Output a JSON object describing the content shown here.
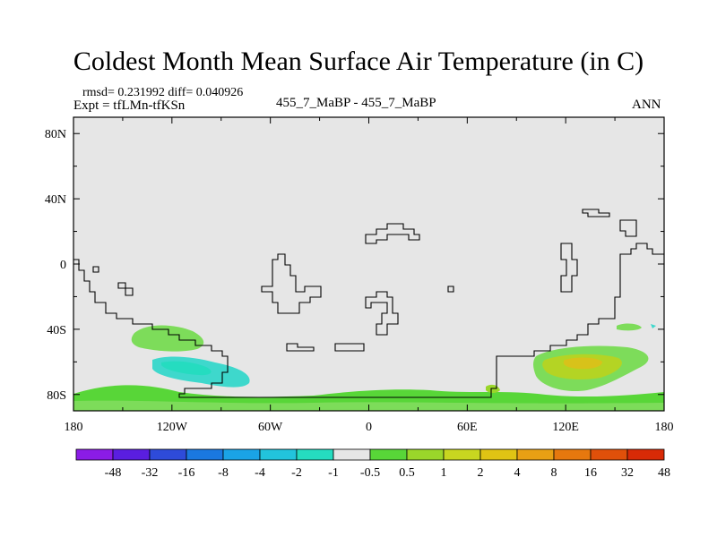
{
  "title": "Coldest Month Mean Surface Air Temperature (in C)",
  "stats_line": "rmsd= 0.231992 diff= 0.040926",
  "expt_line": "Expt = tfLMn-tfKSn",
  "center_label": "455_7_MaBP - 455_7_MaBP",
  "season_label": "ANN",
  "lat_ticks": [
    {
      "label": "80N",
      "value": 80
    },
    {
      "label": "40N",
      "value": 40
    },
    {
      "label": "0",
      "value": 0
    },
    {
      "label": "40S",
      "value": -40
    },
    {
      "label": "80S",
      "value": -80
    }
  ],
  "lon_ticks": [
    {
      "label": "180",
      "value": -180
    },
    {
      "label": "120W",
      "value": -120
    },
    {
      "label": "60W",
      "value": -60
    },
    {
      "label": "0",
      "value": 0
    },
    {
      "label": "60E",
      "value": 60
    },
    {
      "label": "120E",
      "value": 120
    },
    {
      "label": "180",
      "value": 180
    }
  ],
  "colorbar": {
    "colors": [
      "#8b1ce6",
      "#5a1ee0",
      "#2e4bd9",
      "#1a78e0",
      "#1aa3e6",
      "#22c4dc",
      "#25dcc0",
      "#e6e6e6",
      "#58d638",
      "#9ad62a",
      "#c8d620",
      "#e0c414",
      "#e8a014",
      "#e6780e",
      "#e0500a",
      "#d82a06"
    ],
    "labels": [
      "-48",
      "-32",
      "-16",
      "-8",
      "-4",
      "-2",
      "-1",
      "-0.5",
      "0.5",
      "1",
      "2",
      "4",
      "8",
      "16",
      "32",
      "48"
    ]
  },
  "colors": {
    "background_field": "#e6e6e6",
    "light_green": "#7ddc5a",
    "green": "#58d638",
    "cyan": "#3ed8cc",
    "yellow_green": "#b4d424",
    "yellow": "#d8c21a"
  }
}
